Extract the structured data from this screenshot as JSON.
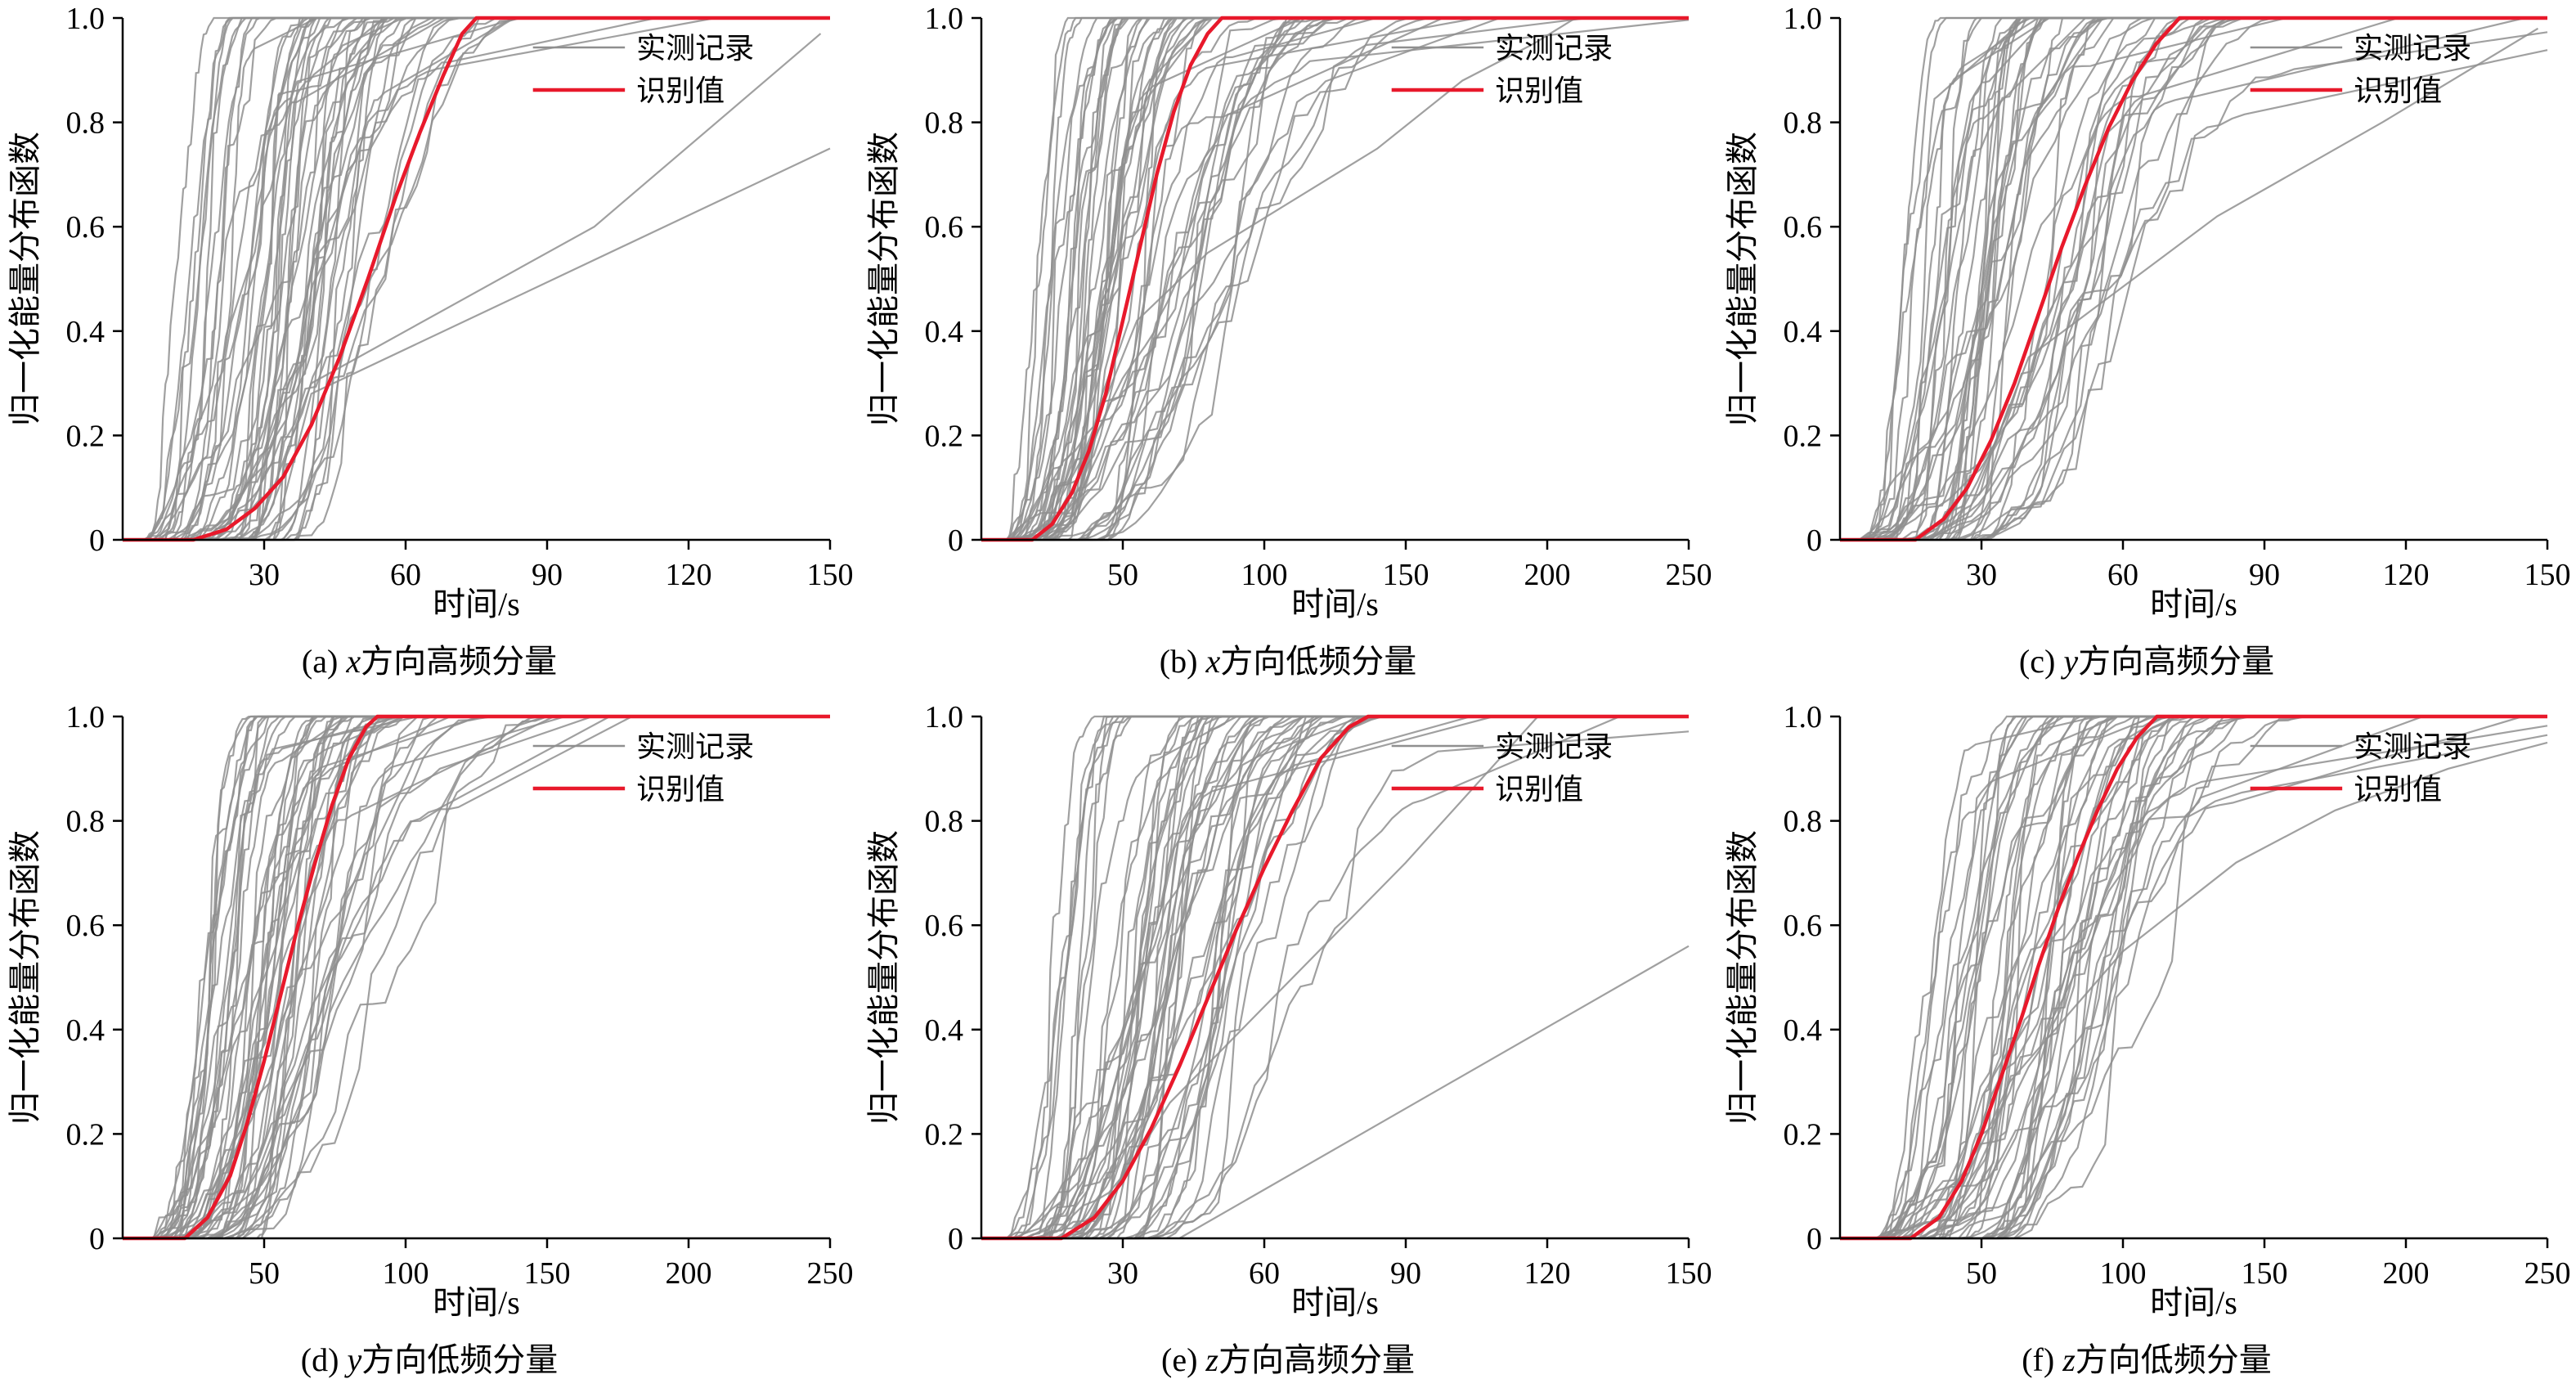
{
  "colors": {
    "measured": "#8f8f8f",
    "identified": "#e8192b",
    "axis": "#000000",
    "background": "#ffffff"
  },
  "chart_data": [
    {
      "type": "line",
      "caption": {
        "prefix": "(a) ",
        "var": "x",
        "suffix": "方向高频分量"
      },
      "xlabel": "时间/s",
      "ylabel": "归一化能量分布函数",
      "xlim": [
        0,
        150
      ],
      "ylim": [
        0,
        1.0
      ],
      "xticks": [
        30,
        60,
        90,
        120,
        150
      ],
      "yticks": [
        0,
        0.2,
        0.4,
        0.6,
        0.8,
        1.0
      ],
      "grid": false,
      "legend_position": "top-right",
      "legend": [
        {
          "label": "实测记录",
          "series": "measured"
        },
        {
          "label": "识别值",
          "series": "identified"
        }
      ],
      "identified_curve": [
        [
          0,
          0
        ],
        [
          15,
          0
        ],
        [
          22,
          0.02
        ],
        [
          28,
          0.06
        ],
        [
          34,
          0.12
        ],
        [
          40,
          0.22
        ],
        [
          46,
          0.35
        ],
        [
          52,
          0.5
        ],
        [
          58,
          0.66
        ],
        [
          63,
          0.78
        ],
        [
          68,
          0.89
        ],
        [
          72,
          0.97
        ],
        [
          75,
          1
        ],
        [
          150,
          1
        ]
      ],
      "measured_curves": {
        "count": 52,
        "seed": 101,
        "onset_range": [
          4,
          38
        ],
        "rise_range": [
          14,
          65
        ],
        "outliers": [
          [
            [
              32,
              0
            ],
            [
              40,
              0.28
            ],
            [
              150,
              0.75
            ]
          ],
          [
            [
              28,
              0
            ],
            [
              40,
              0.3
            ],
            [
              100,
              0.6
            ],
            [
              148,
              0.97
            ]
          ]
        ]
      }
    },
    {
      "type": "line",
      "caption": {
        "prefix": "(b) ",
        "var": "x",
        "suffix": "方向低频分量"
      },
      "xlabel": "时间/s",
      "ylabel": "归一化能量分布函数",
      "xlim": [
        0,
        250
      ],
      "ylim": [
        0,
        1.0
      ],
      "xticks": [
        50,
        100,
        150,
        200,
        250
      ],
      "yticks": [
        0,
        0.2,
        0.4,
        0.6,
        0.8,
        1.0
      ],
      "grid": false,
      "legend_position": "top-right",
      "legend": [
        {
          "label": "实测记录",
          "series": "measured"
        },
        {
          "label": "识别值",
          "series": "identified"
        }
      ],
      "identified_curve": [
        [
          0,
          0
        ],
        [
          18,
          0
        ],
        [
          25,
          0.03
        ],
        [
          32,
          0.09
        ],
        [
          38,
          0.17
        ],
        [
          44,
          0.28
        ],
        [
          50,
          0.42
        ],
        [
          56,
          0.56
        ],
        [
          62,
          0.7
        ],
        [
          68,
          0.82
        ],
        [
          74,
          0.91
        ],
        [
          80,
          0.97
        ],
        [
          85,
          1
        ],
        [
          250,
          1
        ]
      ],
      "measured_curves": {
        "count": 52,
        "seed": 202,
        "onset_range": [
          8,
          45
        ],
        "rise_range": [
          20,
          120
        ],
        "outliers": [
          [
            [
              20,
              0
            ],
            [
              35,
              0.15
            ],
            [
              55,
              0.42
            ],
            [
              80,
              0.55
            ],
            [
              110,
              0.65
            ],
            [
              140,
              0.75
            ],
            [
              170,
              0.88
            ],
            [
              195,
              0.95
            ],
            [
              210,
              1
            ]
          ]
        ]
      }
    },
    {
      "type": "line",
      "caption": {
        "prefix": "(c) ",
        "var": "y",
        "suffix": "方向高频分量"
      },
      "xlabel": "时间/s",
      "ylabel": "归一化能量分布函数",
      "xlim": [
        0,
        150
      ],
      "ylim": [
        0,
        1.0
      ],
      "xticks": [
        30,
        60,
        90,
        120,
        150
      ],
      "yticks": [
        0,
        0.2,
        0.4,
        0.6,
        0.8,
        1.0
      ],
      "grid": false,
      "legend_position": "top-right",
      "legend": [
        {
          "label": "实测记录",
          "series": "measured"
        },
        {
          "label": "识别值",
          "series": "identified"
        }
      ],
      "identified_curve": [
        [
          0,
          0
        ],
        [
          16,
          0
        ],
        [
          22,
          0.04
        ],
        [
          27,
          0.1
        ],
        [
          32,
          0.19
        ],
        [
          37,
          0.3
        ],
        [
          42,
          0.43
        ],
        [
          47,
          0.56
        ],
        [
          52,
          0.68
        ],
        [
          57,
          0.79
        ],
        [
          62,
          0.88
        ],
        [
          67,
          0.95
        ],
        [
          72,
          1
        ],
        [
          150,
          1
        ]
      ],
      "measured_curves": {
        "count": 50,
        "seed": 303,
        "onset_range": [
          4,
          32
        ],
        "rise_range": [
          14,
          75
        ],
        "outliers": [
          [
            [
              25,
              0
            ],
            [
              40,
              0.35
            ],
            [
              80,
              0.62
            ],
            [
              115,
              0.8
            ],
            [
              148,
              0.98
            ]
          ]
        ]
      }
    },
    {
      "type": "line",
      "caption": {
        "prefix": "(d) ",
        "var": "y",
        "suffix": "方向低频分量"
      },
      "xlabel": "时间/s",
      "ylabel": "归一化能量分布函数",
      "xlim": [
        0,
        250
      ],
      "ylim": [
        0,
        1.0
      ],
      "xticks": [
        50,
        100,
        150,
        200,
        250
      ],
      "yticks": [
        0,
        0.2,
        0.4,
        0.6,
        0.8,
        1.0
      ],
      "grid": false,
      "legend_position": "top-right",
      "legend": [
        {
          "label": "实测记录",
          "series": "measured"
        },
        {
          "label": "识别值",
          "series": "identified"
        }
      ],
      "identified_curve": [
        [
          0,
          0
        ],
        [
          22,
          0
        ],
        [
          30,
          0.04
        ],
        [
          38,
          0.12
        ],
        [
          44,
          0.22
        ],
        [
          50,
          0.34
        ],
        [
          56,
          0.47
        ],
        [
          62,
          0.6
        ],
        [
          68,
          0.72
        ],
        [
          74,
          0.83
        ],
        [
          80,
          0.92
        ],
        [
          86,
          0.98
        ],
        [
          90,
          1
        ],
        [
          250,
          1
        ]
      ],
      "measured_curves": {
        "count": 52,
        "seed": 404,
        "onset_range": [
          10,
          48
        ],
        "rise_range": [
          22,
          125
        ],
        "outliers": []
      }
    },
    {
      "type": "line",
      "caption": {
        "prefix": "(e) ",
        "var": "z",
        "suffix": "方向高频分量"
      },
      "xlabel": "时间/s",
      "ylabel": "归一化能量分布函数",
      "xlim": [
        0,
        150
      ],
      "ylim": [
        0,
        1.0
      ],
      "xticks": [
        30,
        60,
        90,
        120,
        150
      ],
      "yticks": [
        0,
        0.2,
        0.4,
        0.6,
        0.8,
        1.0
      ],
      "grid": false,
      "legend_position": "top-right",
      "legend": [
        {
          "label": "实测记录",
          "series": "measured"
        },
        {
          "label": "识别值",
          "series": "identified"
        }
      ],
      "identified_curve": [
        [
          0,
          0
        ],
        [
          17,
          0
        ],
        [
          24,
          0.04
        ],
        [
          30,
          0.11
        ],
        [
          36,
          0.21
        ],
        [
          42,
          0.33
        ],
        [
          48,
          0.46
        ],
        [
          54,
          0.59
        ],
        [
          60,
          0.71
        ],
        [
          66,
          0.82
        ],
        [
          72,
          0.92
        ],
        [
          78,
          0.98
        ],
        [
          82,
          1
        ],
        [
          150,
          1
        ]
      ],
      "measured_curves": {
        "count": 52,
        "seed": 505,
        "onset_range": [
          5,
          38
        ],
        "rise_range": [
          16,
          75
        ],
        "outliers": [
          [
            [
              42,
              0
            ],
            [
              150,
              0.56
            ]
          ],
          [
            [
              22,
              0
            ],
            [
              40,
              0.26
            ],
            [
              90,
              0.72
            ],
            [
              118,
              1
            ]
          ]
        ]
      }
    },
    {
      "type": "line",
      "caption": {
        "prefix": "(f) ",
        "var": "z",
        "suffix": "方向低频分量"
      },
      "xlabel": "时间/s",
      "ylabel": "归一化能量分布函数",
      "xlim": [
        0,
        250
      ],
      "ylim": [
        0,
        1.0
      ],
      "xticks": [
        50,
        100,
        150,
        200,
        250
      ],
      "yticks": [
        0,
        0.2,
        0.4,
        0.6,
        0.8,
        1.0
      ],
      "grid": false,
      "legend_position": "top-right",
      "legend": [
        {
          "label": "实测记录",
          "series": "measured"
        },
        {
          "label": "识别值",
          "series": "identified"
        }
      ],
      "identified_curve": [
        [
          0,
          0
        ],
        [
          25,
          0
        ],
        [
          35,
          0.04
        ],
        [
          43,
          0.11
        ],
        [
          50,
          0.2
        ],
        [
          57,
          0.31
        ],
        [
          64,
          0.42
        ],
        [
          70,
          0.52
        ],
        [
          77,
          0.63
        ],
        [
          84,
          0.73
        ],
        [
          91,
          0.82
        ],
        [
          98,
          0.9
        ],
        [
          105,
          0.96
        ],
        [
          112,
          1
        ],
        [
          250,
          1
        ]
      ],
      "measured_curves": {
        "count": 50,
        "seed": 606,
        "onset_range": [
          12,
          60
        ],
        "rise_range": [
          25,
          140
        ],
        "outliers": [
          [
            [
              35,
              0
            ],
            [
              60,
              0.3
            ],
            [
              100,
              0.55
            ],
            [
              140,
              0.72
            ],
            [
              175,
              0.82
            ],
            [
              215,
              0.9
            ],
            [
              250,
              0.95
            ]
          ]
        ]
      }
    }
  ]
}
